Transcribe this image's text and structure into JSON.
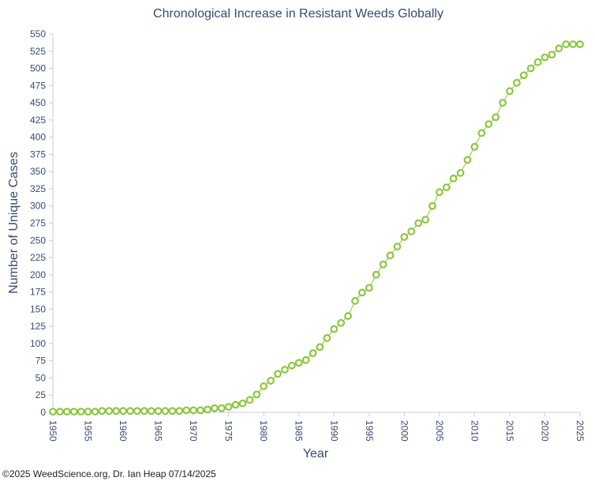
{
  "chart_data": {
    "type": "line",
    "title": "Chronological Increase in Resistant Weeds Globally",
    "xlabel": "Year",
    "ylabel": "Number of Unique Cases",
    "xlim": [
      1950,
      2025
    ],
    "ylim": [
      0,
      550
    ],
    "x_ticks": [
      1950,
      1955,
      1960,
      1965,
      1970,
      1975,
      1980,
      1985,
      1990,
      1995,
      2000,
      2005,
      2010,
      2015,
      2020,
      2025
    ],
    "y_ticks": [
      0,
      25,
      50,
      75,
      100,
      125,
      150,
      175,
      200,
      225,
      250,
      275,
      300,
      325,
      350,
      375,
      400,
      425,
      450,
      475,
      500,
      525,
      550
    ],
    "grid": false,
    "legend": "none",
    "series": [
      {
        "color": "#8dc63f",
        "x": [
          1950,
          1951,
          1952,
          1953,
          1954,
          1955,
          1956,
          1957,
          1958,
          1959,
          1960,
          1961,
          1962,
          1963,
          1964,
          1965,
          1966,
          1967,
          1968,
          1969,
          1970,
          1971,
          1972,
          1973,
          1974,
          1975,
          1976,
          1977,
          1978,
          1979,
          1980,
          1981,
          1982,
          1983,
          1984,
          1985,
          1986,
          1987,
          1988,
          1989,
          1990,
          1991,
          1992,
          1993,
          1994,
          1995,
          1996,
          1997,
          1998,
          1999,
          2000,
          2001,
          2002,
          2003,
          2004,
          2005,
          2006,
          2007,
          2008,
          2009,
          2010,
          2011,
          2012,
          2013,
          2014,
          2015,
          2016,
          2017,
          2018,
          2019,
          2020,
          2021,
          2022,
          2023,
          2024,
          2025
        ],
        "values": [
          1,
          1,
          1,
          1,
          1,
          1,
          1,
          2,
          2,
          2,
          2,
          2,
          2,
          2,
          2,
          2,
          2,
          2,
          2,
          3,
          3,
          3,
          4,
          6,
          6,
          8,
          11,
          13,
          18,
          26,
          38,
          46,
          56,
          62,
          68,
          72,
          76,
          86,
          95,
          108,
          121,
          130,
          140,
          162,
          174,
          181,
          200,
          215,
          228,
          241,
          255,
          263,
          275,
          280,
          300,
          320,
          327,
          340,
          348,
          367,
          386,
          406,
          419,
          429,
          450,
          467,
          479,
          490,
          500,
          509,
          516,
          520,
          529,
          535,
          535,
          535
        ]
      }
    ]
  },
  "footer": {
    "credit": "©2025 WeedScience.org, Dr. Ian Heap 07/14/2025"
  }
}
